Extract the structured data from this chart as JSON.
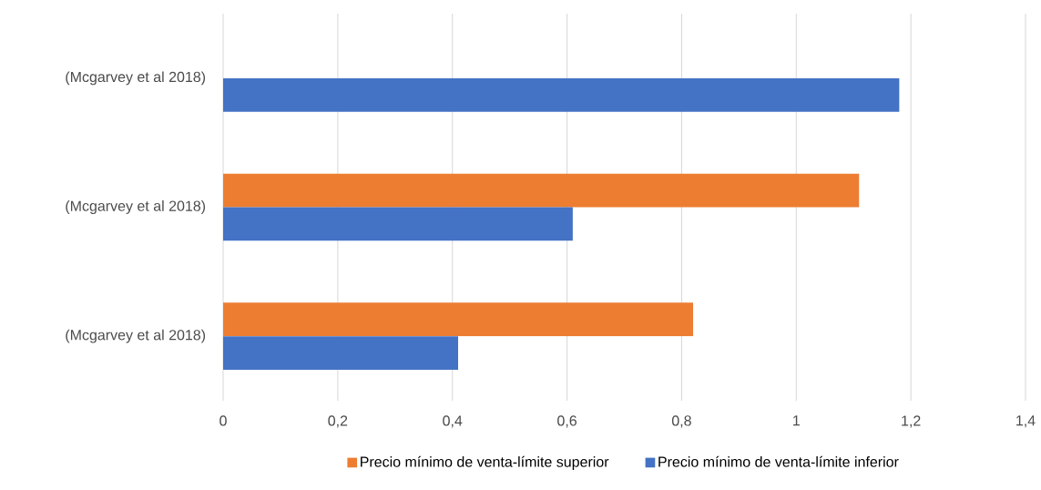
{
  "chart_data": {
    "type": "bar",
    "orientation": "horizontal",
    "categories": [
      "(Mcgarvey et al 2018)",
      "(Mcgarvey et al 2018)",
      "(Mcgarvey et al 2018)"
    ],
    "series": [
      {
        "name": "Precio mínimo de venta-límite superior",
        "color": "#ed7d31",
        "values": [
          null,
          1.11,
          0.82
        ]
      },
      {
        "name": "Precio mínimo de venta-límite inferior",
        "color": "#4472c4",
        "values": [
          1.18,
          0.61,
          0.41
        ]
      }
    ],
    "xlim": [
      0,
      1.4
    ],
    "xticks": [
      0,
      {
        "value": 0.2,
        "label": "0,2"
      },
      {
        "value": 0.4,
        "label": "0,4"
      },
      {
        "value": 0.6,
        "label": "0,6"
      },
      {
        "value": 0.8,
        "label": "0,8"
      },
      1,
      {
        "value": 1.2,
        "label": "1,2"
      },
      {
        "value": 1.4,
        "label": "1,4"
      }
    ],
    "grid": "x",
    "legend": "bottom"
  }
}
